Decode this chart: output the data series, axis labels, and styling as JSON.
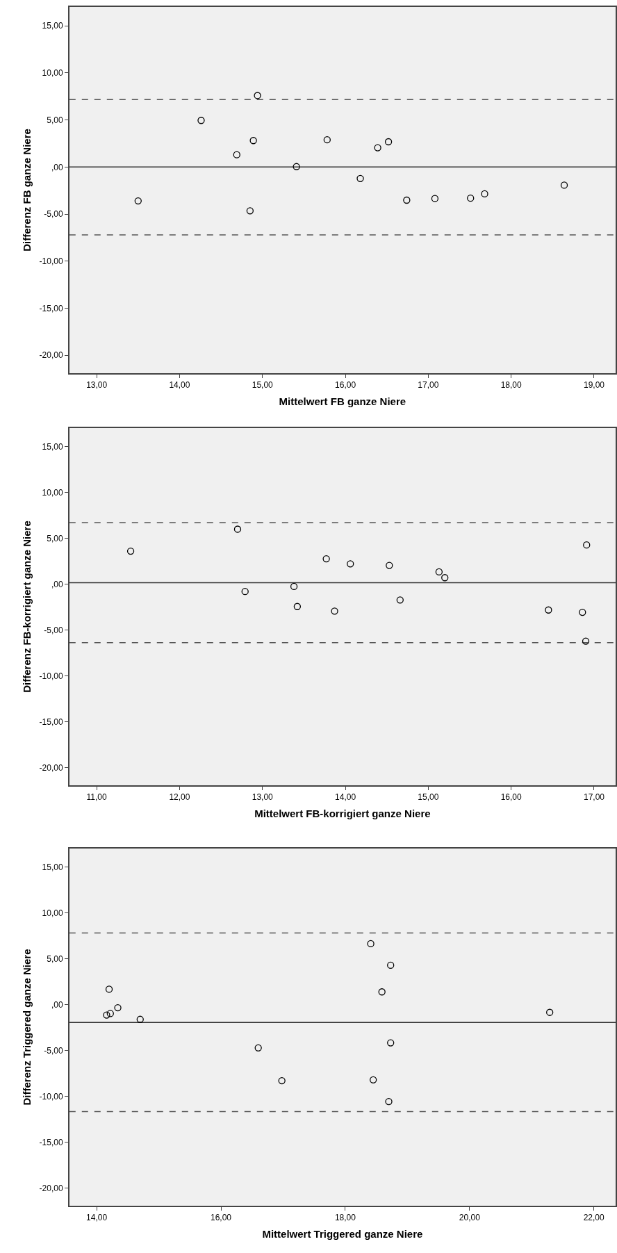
{
  "chart_data": [
    {
      "type": "scatter",
      "xlabel": "Mittelwert FB ganze Niere",
      "ylabel": "Differenz FB ganze Niere",
      "color": "#000000",
      "marker": "circle",
      "x": [
        13.5,
        14.26,
        14.69,
        14.89,
        14.85,
        14.94,
        15.41,
        15.78,
        16.18,
        16.39,
        16.52,
        16.74,
        17.08,
        17.51,
        17.68,
        18.64
      ],
      "values": [
        -3.6,
        4.95,
        1.3,
        2.81,
        -4.65,
        7.59,
        0.04,
        2.89,
        -1.22,
        2.05,
        2.68,
        -3.52,
        -3.35,
        -3.31,
        -2.85,
        -1.93
      ],
      "xlim": [
        12.67,
        19.26
      ],
      "ylim": [
        -21.9,
        17.0
      ],
      "xticks": [
        {
          "value": 13,
          "label": "13,00"
        },
        {
          "value": 14,
          "label": "14,00"
        },
        {
          "value": 15,
          "label": "15,00"
        },
        {
          "value": 16,
          "label": "16,00"
        },
        {
          "value": 17,
          "label": "17,00"
        },
        {
          "value": 18,
          "label": "18,00"
        },
        {
          "value": 19,
          "label": "19,00"
        }
      ],
      "yticks": [
        {
          "value": -20,
          "label": "-20,00"
        },
        {
          "value": -15,
          "label": "-15,00"
        },
        {
          "value": -10,
          "label": "-10,00"
        },
        {
          "value": -5,
          "label": "-5,00"
        },
        {
          "value": 0,
          "label": ",00"
        },
        {
          "value": 5,
          "label": "5,00"
        },
        {
          "value": 10,
          "label": "10,00"
        },
        {
          "value": 15,
          "label": "15,00"
        }
      ],
      "ref_lines": [
        {
          "axis": "y",
          "value": 7.17,
          "line_style": "dashed",
          "color": "#555555"
        },
        {
          "axis": "y",
          "value": 0.0,
          "line_style": "solid",
          "color": "#333333"
        },
        {
          "axis": "y",
          "value": -7.21,
          "line_style": "dashed",
          "color": "#555555"
        }
      ]
    },
    {
      "type": "scatter",
      "xlabel": "Mittelwert FB-korrigiert ganze Niere",
      "ylabel": "Differenz FB-korrigiert ganze Niere",
      "color": "#000000",
      "marker": "circle",
      "x": [
        11.41,
        12.7,
        12.79,
        13.38,
        13.42,
        13.77,
        13.87,
        14.06,
        14.53,
        14.66,
        15.13,
        15.2,
        16.45,
        16.86,
        16.91,
        16.9
      ],
      "values": [
        3.6,
        5.99,
        -0.8,
        -0.25,
        -2.43,
        2.77,
        -2.93,
        2.22,
        2.05,
        -1.72,
        1.34,
        0.71,
        -2.81,
        -3.06,
        4.27,
        -6.2
      ],
      "xlim": [
        10.67,
        17.26
      ],
      "ylim": [
        -21.9,
        17.0
      ],
      "xticks": [
        {
          "value": 11,
          "label": "11,00"
        },
        {
          "value": 12,
          "label": "12,00"
        },
        {
          "value": 13,
          "label": "13,00"
        },
        {
          "value": 14,
          "label": "14,00"
        },
        {
          "value": 15,
          "label": "15,00"
        },
        {
          "value": 16,
          "label": "16,00"
        },
        {
          "value": 17,
          "label": "17,00"
        }
      ],
      "yticks": [
        {
          "value": -20,
          "label": "-20,00"
        },
        {
          "value": -15,
          "label": "-15,00"
        },
        {
          "value": -10,
          "label": "-10,00"
        },
        {
          "value": -5,
          "label": "-5,00"
        },
        {
          "value": 0,
          "label": ",00"
        },
        {
          "value": 5,
          "label": "5,00"
        },
        {
          "value": 10,
          "label": "10,00"
        },
        {
          "value": 15,
          "label": "15,00"
        }
      ],
      "ref_lines": [
        {
          "axis": "y",
          "value": 6.71,
          "line_style": "dashed",
          "color": "#555555"
        },
        {
          "axis": "y",
          "value": 0.17,
          "line_style": "solid",
          "color": "#333333"
        },
        {
          "axis": "y",
          "value": -6.37,
          "line_style": "dashed",
          "color": "#555555"
        }
      ]
    },
    {
      "type": "scatter",
      "xlabel": "Mittelwert Triggered ganze Niere",
      "ylabel": "Differenz Triggered ganze Niere",
      "color": "#000000",
      "marker": "circle",
      "x": [
        14.2,
        14.16,
        14.22,
        14.34,
        14.7,
        16.6,
        16.98,
        18.41,
        18.73,
        18.59,
        18.73,
        18.45,
        18.7,
        21.29
      ],
      "values": [
        1.68,
        -1.13,
        -0.97,
        -0.34,
        -1.6,
        -4.71,
        -8.28,
        6.64,
        4.29,
        1.39,
        -4.16,
        -8.19,
        -10.55,
        -0.84
      ],
      "xlim": [
        13.56,
        22.35
      ],
      "ylim": [
        -21.9,
        17.0
      ],
      "xticks": [
        {
          "value": 14,
          "label": "14,00"
        },
        {
          "value": 16,
          "label": "16,00"
        },
        {
          "value": 18,
          "label": "18,00"
        },
        {
          "value": 20,
          "label": "20,00"
        },
        {
          "value": 22,
          "label": "22,00"
        }
      ],
      "yticks": [
        {
          "value": -20,
          "label": "-20,00"
        },
        {
          "value": -15,
          "label": "-15,00"
        },
        {
          "value": -10,
          "label": "-10,00"
        },
        {
          "value": -5,
          "label": "-5,00"
        },
        {
          "value": 0,
          "label": ",00"
        },
        {
          "value": 5,
          "label": "5,00"
        },
        {
          "value": 10,
          "label": "10,00"
        },
        {
          "value": 15,
          "label": "15,00"
        }
      ],
      "ref_lines": [
        {
          "axis": "y",
          "value": 7.81,
          "line_style": "dashed",
          "color": "#555555"
        },
        {
          "axis": "y",
          "value": -1.93,
          "line_style": "solid",
          "color": "#333333"
        },
        {
          "axis": "y",
          "value": -11.64,
          "line_style": "dashed",
          "color": "#555555"
        }
      ]
    }
  ]
}
